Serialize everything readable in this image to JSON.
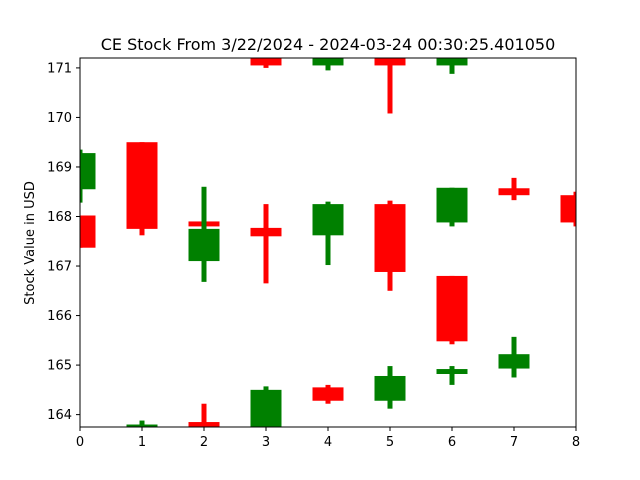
{
  "chart_data": {
    "type": "candlestick",
    "title": "CE Stock From 3/22/2024 - 2024-03-24 00:30:25.401050",
    "xlabel": "",
    "ylabel": "Stock Value in USD",
    "xlim": [
      0,
      8
    ],
    "ylim": [
      163.75,
      171.2
    ],
    "x_ticks": [
      "0",
      "1",
      "2",
      "3",
      "4",
      "5",
      "6",
      "7",
      "8"
    ],
    "y_ticks": [
      "164",
      "165",
      "166",
      "167",
      "168",
      "169",
      "170",
      "171"
    ],
    "grid": false,
    "legend": "none",
    "colors": {
      "up": "#008000",
      "down": "#ff0000"
    },
    "candles": [
      {
        "x": 0.0,
        "open": 168.55,
        "close": 169.28,
        "high": 169.35,
        "low": 168.28
      },
      {
        "x": 0.0,
        "open": 168.02,
        "close": 167.37,
        "high": 168.02,
        "low": 167.37
      },
      {
        "x": 1.0,
        "open": 163.7,
        "close": 163.8,
        "high": 163.88,
        "low": 163.7
      },
      {
        "x": 1.0,
        "open": 169.5,
        "close": 167.75,
        "high": 169.5,
        "low": 167.62
      },
      {
        "x": 2.0,
        "open": 163.85,
        "close": 163.75,
        "high": 164.22,
        "low": 163.75
      },
      {
        "x": 2.0,
        "open": 167.9,
        "close": 167.8,
        "high": 168.22,
        "low": 167.5
      },
      {
        "x": 2.0,
        "open": 167.1,
        "close": 167.75,
        "high": 168.6,
        "low": 166.68
      },
      {
        "x": 3.0,
        "open": 163.75,
        "close": 164.5,
        "high": 164.57,
        "low": 163.75
      },
      {
        "x": 3.0,
        "open": 167.77,
        "close": 167.6,
        "high": 168.25,
        "low": 166.65
      },
      {
        "x": 3.0,
        "open": 171.2,
        "close": 171.05,
        "high": 171.2,
        "low": 171.0
      },
      {
        "x": 4.0,
        "open": 164.55,
        "close": 164.28,
        "high": 164.6,
        "low": 164.22
      },
      {
        "x": 4.0,
        "open": 167.62,
        "close": 168.25,
        "high": 168.3,
        "low": 167.02
      },
      {
        "x": 4.0,
        "open": 171.05,
        "close": 171.2,
        "high": 171.2,
        "low": 170.95
      },
      {
        "x": 5.0,
        "open": 164.28,
        "close": 164.78,
        "high": 164.98,
        "low": 164.12
      },
      {
        "x": 5.0,
        "open": 168.25,
        "close": 166.88,
        "high": 168.32,
        "low": 166.5
      },
      {
        "x": 5.0,
        "open": 171.2,
        "close": 171.05,
        "high": 171.2,
        "low": 170.08
      },
      {
        "x": 6.0,
        "open": 164.82,
        "close": 164.92,
        "high": 164.98,
        "low": 164.6
      },
      {
        "x": 6.0,
        "open": 166.8,
        "close": 165.48,
        "high": 166.8,
        "low": 165.42
      },
      {
        "x": 6.0,
        "open": 167.88,
        "close": 168.58,
        "high": 168.58,
        "low": 167.8
      },
      {
        "x": 6.0,
        "open": 171.05,
        "close": 171.2,
        "high": 171.2,
        "low": 170.88
      },
      {
        "x": 7.0,
        "open": 164.93,
        "close": 165.22,
        "high": 165.57,
        "low": 164.75
      },
      {
        "x": 7.0,
        "open": 168.57,
        "close": 168.43,
        "high": 168.78,
        "low": 168.33
      },
      {
        "x": 8.0,
        "open": 168.43,
        "close": 167.88,
        "high": 168.5,
        "low": 167.8
      }
    ]
  }
}
